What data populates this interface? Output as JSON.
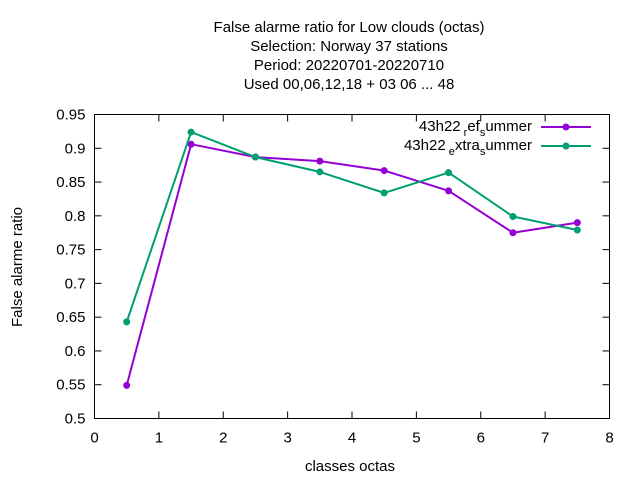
{
  "chart_data": {
    "type": "line",
    "title_lines": [
      "False alarme ratio  for Low clouds (octas)",
      "Selection: Norway      37 stations",
      "Period: 20220701-20220710",
      "Used  00,06,12,18  + 03 06 ... 48"
    ],
    "xlabel": "classes octas",
    "ylabel": "False alarme ratio",
    "xlim": [
      0,
      8
    ],
    "ylim": [
      0.5,
      0.95
    ],
    "xticks": [
      0,
      1,
      2,
      3,
      4,
      5,
      6,
      7,
      8
    ],
    "xtick_labels": [
      "0",
      "1",
      "2",
      "3",
      "4",
      "5",
      "6",
      "7",
      "8"
    ],
    "yticks": [
      0.5,
      0.55,
      0.6,
      0.65,
      0.7,
      0.75,
      0.8,
      0.85,
      0.9,
      0.95
    ],
    "ytick_labels": [
      "0.5",
      "0.55",
      "0.6",
      "0.65",
      "0.7",
      "0.75",
      "0.8",
      "0.85",
      "0.9",
      "0.95"
    ],
    "grid": false,
    "legend_position": "top-right",
    "x": [
      0.5,
      1.5,
      2.5,
      3.5,
      4.5,
      5.5,
      6.5,
      7.5
    ],
    "series": [
      {
        "legend_parts": [
          "43h22",
          "r",
          "ef",
          "s",
          "ummer"
        ],
        "color": "#9400d3",
        "values": [
          0.549,
          0.906,
          0.887,
          0.881,
          0.867,
          0.837,
          0.775,
          0.79
        ]
      },
      {
        "legend_parts": [
          "43h22",
          "e",
          "xtra",
          "s",
          "ummer"
        ],
        "color": "#009e73",
        "values": [
          0.643,
          0.924,
          0.887,
          0.865,
          0.834,
          0.864,
          0.799,
          0.779
        ]
      }
    ]
  }
}
